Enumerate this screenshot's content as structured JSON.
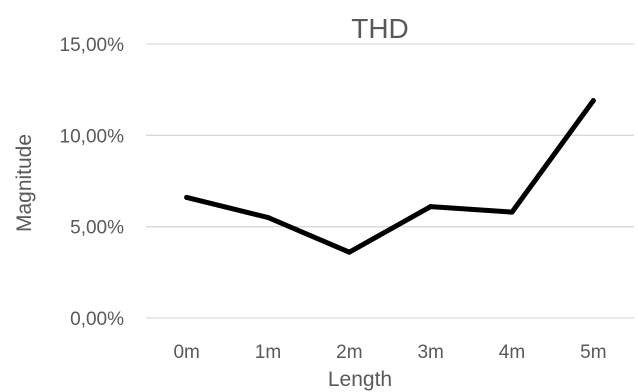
{
  "chart_data": {
    "type": "line",
    "title": "THD",
    "xlabel": "Length",
    "ylabel": "Magnitude",
    "categories": [
      "0m",
      "1m",
      "2m",
      "3m",
      "4m",
      "5m"
    ],
    "series": [
      {
        "values": [
          6.6,
          5.5,
          3.6,
          6.1,
          5.8,
          11.9
        ]
      }
    ],
    "ylim": [
      0,
      15
    ],
    "yticks": [
      {
        "value": 0,
        "label": "0,00%"
      },
      {
        "value": 5,
        "label": "5,00%"
      },
      {
        "value": 10,
        "label": "10,00%"
      },
      {
        "value": 15,
        "label": "15,00%"
      }
    ],
    "grid": true,
    "legend": "none",
    "colors": {
      "series": "#000000",
      "grid": "#d9d9d9",
      "text": "#595959"
    }
  }
}
